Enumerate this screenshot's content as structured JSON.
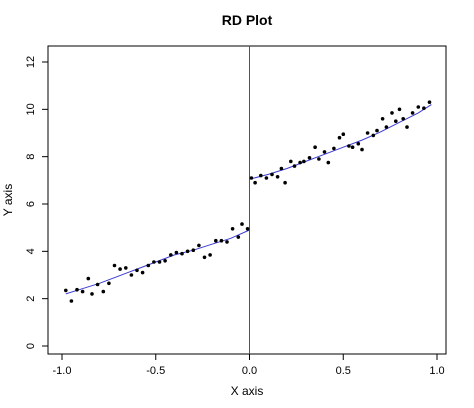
{
  "chart_data": {
    "type": "scatter",
    "title": "RD Plot",
    "xlabel": "X axis",
    "ylabel": "Y axis",
    "xlim": [
      -1.0,
      1.0
    ],
    "ylim": [
      0,
      12
    ],
    "x_ticks": [
      -1.0,
      -0.5,
      0.0,
      0.5,
      1.0
    ],
    "x_tick_labels": [
      "-1.0",
      "-0.5",
      "0.0",
      "0.5",
      "1.0"
    ],
    "y_ticks": [
      0,
      2,
      4,
      6,
      8,
      10,
      12
    ],
    "y_tick_labels": [
      "0",
      "2",
      "4",
      "6",
      "8",
      "10",
      "12"
    ],
    "cutoff": 0.0,
    "grid": false,
    "legend": "none",
    "colors": {
      "points": "#000000",
      "fit": "#3b3bd6",
      "cutoff_line": "#555555",
      "axes": "#000000"
    },
    "points": [
      [
        -0.98,
        2.35
      ],
      [
        -0.95,
        1.9
      ],
      [
        -0.92,
        2.38
      ],
      [
        -0.89,
        2.3
      ],
      [
        -0.86,
        2.85
      ],
      [
        -0.84,
        2.2
      ],
      [
        -0.81,
        2.6
      ],
      [
        -0.78,
        2.3
      ],
      [
        -0.75,
        2.65
      ],
      [
        -0.72,
        3.4
      ],
      [
        -0.69,
        3.25
      ],
      [
        -0.66,
        3.3
      ],
      [
        -0.63,
        3.0
      ],
      [
        -0.6,
        3.2
      ],
      [
        -0.57,
        3.1
      ],
      [
        -0.54,
        3.4
      ],
      [
        -0.51,
        3.55
      ],
      [
        -0.48,
        3.55
      ],
      [
        -0.45,
        3.6
      ],
      [
        -0.42,
        3.85
      ],
      [
        -0.39,
        3.95
      ],
      [
        -0.36,
        3.9
      ],
      [
        -0.33,
        4.0
      ],
      [
        -0.3,
        4.05
      ],
      [
        -0.27,
        4.25
      ],
      [
        -0.24,
        3.75
      ],
      [
        -0.21,
        3.85
      ],
      [
        -0.18,
        4.45
      ],
      [
        -0.15,
        4.45
      ],
      [
        -0.12,
        4.4
      ],
      [
        -0.09,
        4.95
      ],
      [
        -0.06,
        4.6
      ],
      [
        -0.04,
        5.15
      ],
      [
        -0.01,
        4.95
      ],
      [
        0.01,
        7.1
      ],
      [
        0.03,
        6.9
      ],
      [
        0.06,
        7.2
      ],
      [
        0.09,
        7.1
      ],
      [
        0.12,
        7.25
      ],
      [
        0.15,
        7.15
      ],
      [
        0.17,
        7.5
      ],
      [
        0.19,
        6.9
      ],
      [
        0.22,
        7.8
      ],
      [
        0.24,
        7.6
      ],
      [
        0.27,
        7.75
      ],
      [
        0.29,
        7.8
      ],
      [
        0.32,
        7.95
      ],
      [
        0.35,
        8.4
      ],
      [
        0.37,
        7.9
      ],
      [
        0.4,
        8.2
      ],
      [
        0.42,
        7.75
      ],
      [
        0.45,
        8.35
      ],
      [
        0.48,
        8.8
      ],
      [
        0.5,
        8.95
      ],
      [
        0.53,
        8.45
      ],
      [
        0.55,
        8.4
      ],
      [
        0.58,
        8.55
      ],
      [
        0.6,
        8.3
      ],
      [
        0.63,
        9.0
      ],
      [
        0.66,
        8.9
      ],
      [
        0.68,
        9.1
      ],
      [
        0.71,
        9.6
      ],
      [
        0.73,
        9.25
      ],
      [
        0.76,
        9.85
      ],
      [
        0.78,
        9.5
      ],
      [
        0.8,
        10.0
      ],
      [
        0.82,
        9.6
      ],
      [
        0.84,
        9.25
      ],
      [
        0.87,
        9.85
      ],
      [
        0.9,
        10.1
      ],
      [
        0.93,
        10.05
      ],
      [
        0.96,
        10.3
      ]
    ],
    "fit_left": [
      [
        -0.98,
        2.2
      ],
      [
        -0.9,
        2.4
      ],
      [
        -0.8,
        2.65
      ],
      [
        -0.7,
        2.95
      ],
      [
        -0.6,
        3.25
      ],
      [
        -0.5,
        3.55
      ],
      [
        -0.4,
        3.85
      ],
      [
        -0.3,
        4.05
      ],
      [
        -0.2,
        4.3
      ],
      [
        -0.1,
        4.55
      ],
      [
        0.0,
        4.9
      ]
    ],
    "fit_right": [
      [
        0.0,
        7.05
      ],
      [
        0.1,
        7.25
      ],
      [
        0.2,
        7.5
      ],
      [
        0.3,
        7.8
      ],
      [
        0.4,
        8.1
      ],
      [
        0.5,
        8.4
      ],
      [
        0.6,
        8.7
      ],
      [
        0.7,
        9.05
      ],
      [
        0.8,
        9.45
      ],
      [
        0.9,
        9.85
      ],
      [
        0.97,
        10.2
      ]
    ]
  }
}
